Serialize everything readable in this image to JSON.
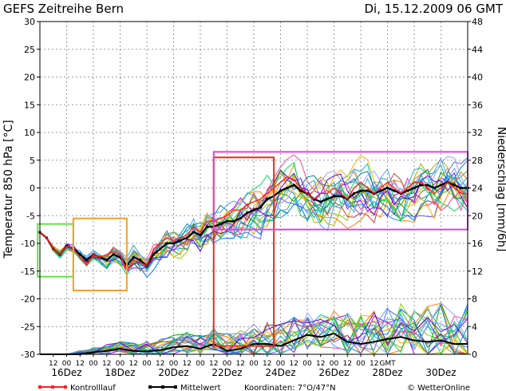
{
  "chart_data": {
    "type": "line",
    "title": "GEFS Zeitreihe Bern",
    "run_date": "Di, 15.12.2009 06 GMT",
    "ylabel_left": "Temperatur 850 hPa [°C]",
    "ylabel_right": "Niederschlag [mm/6h]",
    "ylim_left": [
      -30,
      30
    ],
    "ylim_right": [
      0,
      48
    ],
    "yticks_left": [
      30,
      25,
      20,
      15,
      10,
      5,
      0,
      -5,
      -10,
      -15,
      -20,
      -25,
      -30
    ],
    "yticks_right": [
      48,
      44,
      40,
      36,
      32,
      28,
      24,
      20,
      16,
      12,
      8,
      4,
      0
    ],
    "xlim_hours": [
      0,
      384
    ],
    "x_hour_labels": [
      "12",
      "00",
      "12",
      "00",
      "12",
      "00",
      "12",
      "00",
      "12",
      "00",
      "12",
      "00",
      "12",
      "00",
      "12",
      "00",
      "12",
      "00",
      "12",
      "00",
      "12",
      "00",
      "12",
      "00",
      "12",
      "GMT"
    ],
    "x_day_labels": [
      "16Dez",
      "18Dez",
      "20Dez",
      "22Dez",
      "24Dez",
      "26Dez",
      "28Dez",
      "30Dez"
    ],
    "grid": true,
    "series": [
      {
        "name": "Mittelwert",
        "color": "#000000",
        "x": [
          0,
          6,
          12,
          18,
          24,
          30,
          36,
          42,
          48,
          54,
          60,
          66,
          72,
          78,
          84,
          90,
          96,
          102,
          108,
          114,
          120,
          126,
          132,
          138,
          144,
          150,
          156,
          162,
          168,
          174,
          180,
          186,
          192,
          198,
          204,
          210,
          216,
          222,
          228,
          234,
          240,
          246,
          252,
          258,
          264,
          270,
          276,
          282,
          288,
          294,
          300,
          306,
          312,
          318,
          324,
          330,
          336,
          342,
          348,
          354,
          360,
          366,
          372,
          378,
          384
        ],
        "y": [
          -8,
          -9,
          -11,
          -12,
          -10.5,
          -11,
          -12,
          -13,
          -12,
          -12.5,
          -13,
          -12,
          -12.5,
          -14,
          -12.5,
          -13,
          -14,
          -12,
          -11,
          -10,
          -10,
          -9.5,
          -9,
          -8,
          -8.5,
          -7,
          -7,
          -6.5,
          -6,
          -6,
          -5.5,
          -4.5,
          -4,
          -3.5,
          -2,
          -1.5,
          -0.5,
          0,
          0.5,
          -0.5,
          -1,
          -2,
          -2.5,
          -2,
          -1.5,
          -1.5,
          -2,
          -1,
          -0.5,
          -0.5,
          -1,
          -0.5,
          0,
          -0.5,
          -1,
          -0.5,
          0,
          0.5,
          0.5,
          0,
          0.5,
          1,
          0.5,
          0,
          0
        ]
      },
      {
        "name": "Kontrolllauf",
        "color": "#ff2020",
        "x": [
          0,
          6,
          12,
          18,
          24,
          30,
          36,
          42,
          48,
          54,
          60,
          66,
          72,
          78,
          84,
          90,
          96,
          102,
          108,
          114,
          120,
          126,
          132,
          138,
          144,
          150,
          156,
          162,
          168,
          174,
          180,
          186,
          192,
          198,
          204,
          210,
          216,
          222,
          228,
          234,
          240,
          246,
          252,
          258,
          264,
          270,
          276,
          282,
          288,
          294,
          300,
          306,
          312,
          318,
          324,
          330,
          336,
          342,
          348,
          354,
          360,
          366,
          372,
          378,
          384
        ],
        "y": [
          -8,
          -9,
          -11,
          -12,
          -10.5,
          -11,
          -12.5,
          -14,
          -12,
          -12.5,
          -12,
          -11.5,
          -12,
          -15,
          -13,
          -13.5,
          -14,
          -11,
          -10,
          -9,
          -9.5,
          -9,
          -8.5,
          -7,
          -8,
          -6,
          -6,
          -5.5,
          -5,
          -4,
          -4,
          -3,
          -2.5,
          -2,
          -1,
          0,
          1,
          2,
          1.5,
          0,
          -1,
          -2,
          -1,
          -1,
          0,
          -1,
          -2,
          0,
          1,
          0,
          -1,
          0,
          1,
          0,
          -1,
          0,
          1,
          1,
          0,
          -1,
          0,
          1,
          0,
          -1,
          -1
        ]
      },
      {
        "name": "Niederschlag Mittelwert",
        "color": "#000000",
        "x": [
          0,
          12,
          24,
          36,
          48,
          60,
          72,
          84,
          96,
          108,
          120,
          132,
          144,
          156,
          168,
          180,
          192,
          204,
          216,
          228,
          240,
          252,
          264,
          276,
          288,
          300,
          312,
          324,
          336,
          348,
          360,
          372,
          384
        ],
        "y": [
          0,
          0,
          0,
          0,
          0.3,
          0.5,
          0.8,
          0.5,
          0.4,
          0.6,
          1.0,
          1.2,
          0.8,
          1.5,
          0.5,
          0.8,
          1.5,
          1.5,
          1.2,
          2.0,
          2.8,
          2.5,
          3.0,
          1.8,
          1.5,
          1.8,
          2.2,
          2.5,
          2.0,
          1.8,
          2.0,
          1.5,
          1.5
        ]
      }
    ]
  },
  "boxes": [
    {
      "label": "green",
      "color": "#66e04a"
    },
    {
      "label": "orange",
      "color": "#f0a030"
    },
    {
      "label": "red",
      "color": "#f02a10"
    },
    {
      "label": "magenta",
      "color": "#e040e0"
    }
  ],
  "legend": {
    "kontroll": "Kontrolllauf",
    "mittel": "Mittelwert",
    "koordinaten": "Koordinaten: 7°O/47°N",
    "credit": "© WetterOnline"
  }
}
